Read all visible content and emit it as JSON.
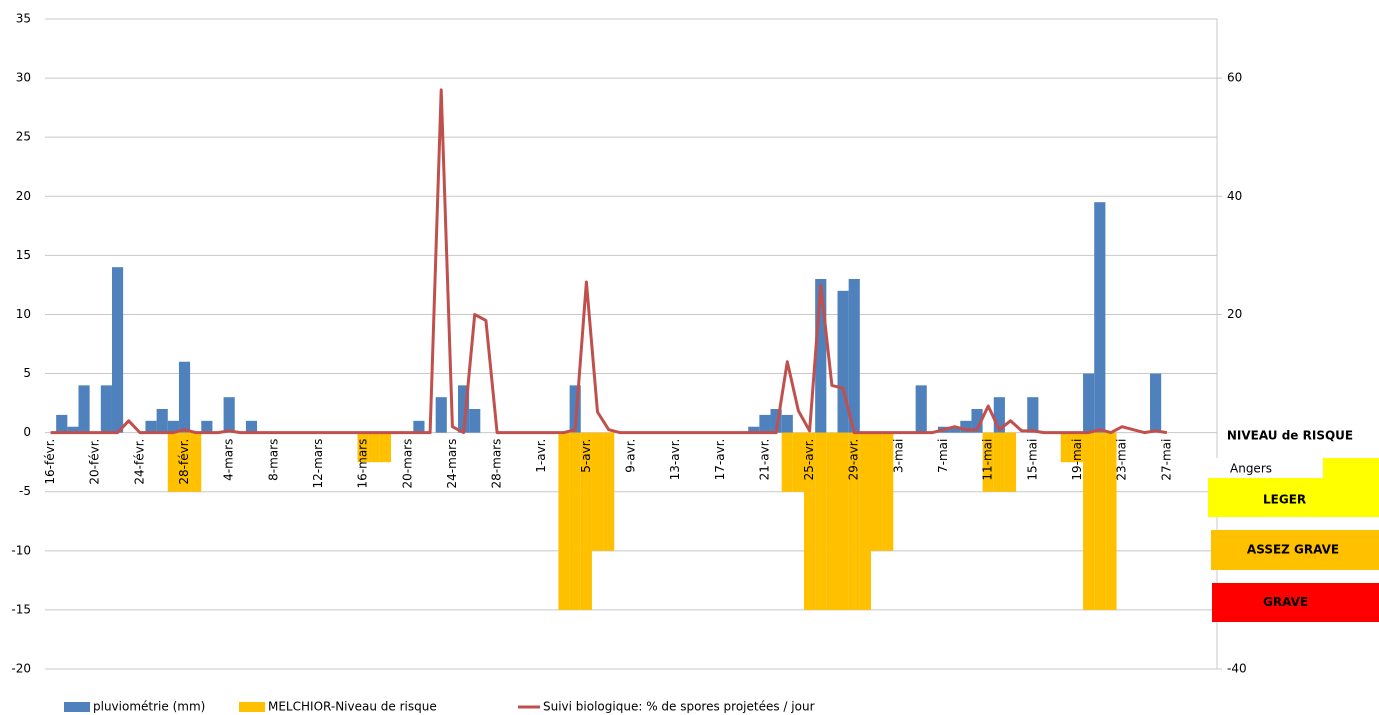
{
  "chart_data": {
    "type": "combo",
    "categories": [
      "16-févr.",
      null,
      null,
      null,
      "20-févr.",
      null,
      null,
      null,
      "24-févr.",
      null,
      null,
      null,
      "28-févr.",
      null,
      null,
      null,
      "4-mars",
      null,
      null,
      null,
      "8-mars",
      null,
      null,
      null,
      "12-mars",
      null,
      null,
      null,
      "16-mars",
      null,
      null,
      null,
      "20-mars",
      null,
      null,
      null,
      "24-mars",
      null,
      null,
      null,
      "28-mars",
      null,
      null,
      null,
      "1-avr.",
      null,
      null,
      null,
      "5-avr.",
      null,
      null,
      null,
      "9-avr.",
      null,
      null,
      null,
      "13-avr.",
      null,
      null,
      null,
      "17-avr.",
      null,
      null,
      null,
      "21-avr.",
      null,
      null,
      null,
      "25-avr.",
      null,
      null,
      null,
      "29-avr.",
      null,
      null,
      null,
      "3-mai",
      null,
      null,
      null,
      "7-mai",
      null,
      null,
      null,
      "11-mai",
      null,
      null,
      null,
      "15-mai",
      null,
      null,
      null,
      "19-mai",
      null,
      null,
      null,
      "23-mai",
      null,
      null,
      null,
      "27-mai",
      null,
      null,
      null,
      null
    ],
    "series": [
      {
        "name": "pluviométrie (mm)",
        "type": "bar",
        "color": "#4f81bd",
        "values": [
          0,
          1.5,
          0.5,
          4,
          0,
          4,
          14,
          0,
          0,
          1,
          2,
          1,
          6,
          0,
          1,
          0,
          3,
          0,
          1,
          0,
          0,
          0,
          0,
          0,
          0,
          0,
          0,
          0,
          0,
          0,
          0,
          0,
          0,
          1,
          0,
          3,
          0,
          4,
          2,
          0,
          0,
          0,
          0,
          0,
          0,
          0,
          0,
          4,
          0,
          0,
          0,
          0,
          0,
          0,
          0,
          0,
          0,
          0,
          0,
          0,
          0,
          0,
          0,
          0.5,
          1.5,
          2,
          1.5,
          0,
          0,
          13,
          0,
          12,
          13,
          0,
          0,
          0,
          0,
          0,
          4,
          0,
          0.5,
          0.5,
          1,
          2,
          0,
          3,
          0,
          0,
          3,
          0,
          0,
          0,
          0,
          5,
          19.5,
          0,
          0,
          0,
          0,
          5,
          0,
          0,
          0,
          0,
          0
        ]
      },
      {
        "name": "MELCHIOR-Niveau de risque",
        "type": "bar",
        "color": "#ffc000",
        "values": [
          0,
          0,
          0,
          0,
          0,
          0,
          0,
          0,
          0,
          0,
          0,
          -5,
          -5,
          -5,
          0,
          0,
          0,
          0,
          0,
          0,
          0,
          0,
          0,
          0,
          0,
          0,
          0,
          0,
          -2.5,
          -2.5,
          -2.5,
          0,
          0,
          0,
          0,
          0,
          0,
          0,
          0,
          0,
          0,
          0,
          0,
          0,
          0,
          0,
          -15,
          -15,
          -15,
          -10,
          -10,
          0,
          0,
          0,
          0,
          0,
          0,
          0,
          0,
          0,
          0,
          0,
          0,
          0,
          0,
          0,
          -5,
          -5,
          -15,
          -15,
          -15,
          -15,
          -15,
          -15,
          -10,
          -10,
          0,
          0,
          0,
          0,
          0,
          0,
          0,
          0,
          -5,
          -5,
          -5,
          0,
          0,
          0,
          0,
          -2.5,
          -2.5,
          -15,
          -15,
          -15,
          0,
          0,
          0,
          0,
          0,
          0,
          0,
          0,
          0
        ]
      },
      {
        "name": "Suivi biologique: % de spores projetées / jour",
        "type": "line",
        "axis": "y2",
        "color": "#c0504d",
        "values": [
          0,
          0,
          0,
          0,
          0,
          0,
          0,
          2,
          0,
          0,
          0,
          0,
          0.5,
          0,
          0,
          0,
          0.3,
          0,
          0,
          0,
          0,
          0,
          0,
          0,
          0,
          0,
          0,
          0,
          0,
          0,
          0,
          0,
          0,
          0,
          0,
          58,
          1,
          0,
          20,
          19,
          0,
          0,
          0,
          0,
          0,
          0,
          0,
          0.5,
          25.5,
          3.5,
          0.5,
          0,
          0,
          0,
          0,
          0,
          0,
          0,
          0,
          0,
          0,
          0,
          0,
          0,
          0,
          0,
          12,
          3.7,
          0.3,
          25,
          8,
          7.5,
          0,
          0,
          0,
          0,
          0,
          0,
          0,
          0,
          0.5,
          1,
          0.5,
          0.5,
          4.5,
          0.5,
          2,
          0.3,
          0.3,
          0,
          0,
          0,
          0,
          0,
          0.5,
          0,
          1,
          0.5,
          0,
          0.3,
          0,
          null,
          null,
          null,
          null
        ]
      }
    ],
    "ylim": [
      -20,
      35
    ],
    "yticks": [
      -20,
      -15,
      -10,
      -5,
      0,
      5,
      10,
      15,
      20,
      25,
      30,
      35
    ],
    "y2lim": [
      -40,
      70
    ],
    "y2ticks": [
      -40,
      20,
      40,
      60
    ],
    "grid": true,
    "legend": "bottom",
    "risk_legend": {
      "title": "NIVEAU de RISQUE",
      "site": "Angers",
      "levels": [
        {
          "label": "LEGER",
          "color": "#ffff00"
        },
        {
          "label": "ASSEZ GRAVE",
          "color": "#ffc000"
        },
        {
          "label": "GRAVE",
          "color": "#ff0000"
        }
      ]
    }
  }
}
